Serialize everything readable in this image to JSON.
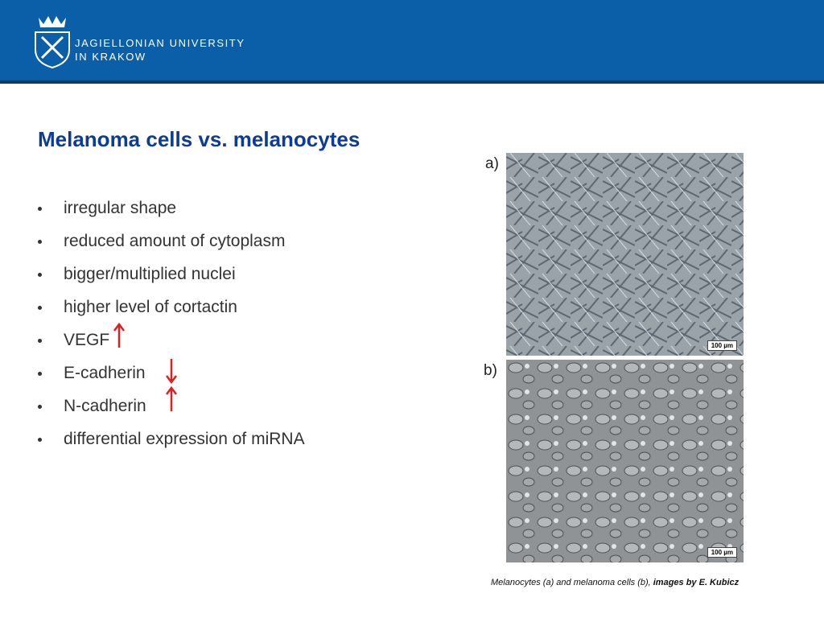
{
  "header": {
    "university": [
      "JAGIELLONIAN UNIVERSITY",
      "IN KRAKOW"
    ]
  },
  "slide": {
    "title": "Melanoma cells vs. melanocytes",
    "bullets": [
      "irregular shape",
      "reduced amount of cytoplasm",
      "bigger/multiplied nuclei",
      "higher level of cortactin",
      "VEGF",
      "E-cadherin",
      "N-cadherin",
      "differential expression of miRNA"
    ],
    "images": [
      {
        "label": "a)",
        "scale": "100 µm"
      },
      {
        "label": "b)",
        "scale": "100 µm"
      }
    ],
    "caption": {
      "text": "Melanocytes (a) and melanoma cells (b), ",
      "credit": "images by E. Kubicz"
    }
  }
}
